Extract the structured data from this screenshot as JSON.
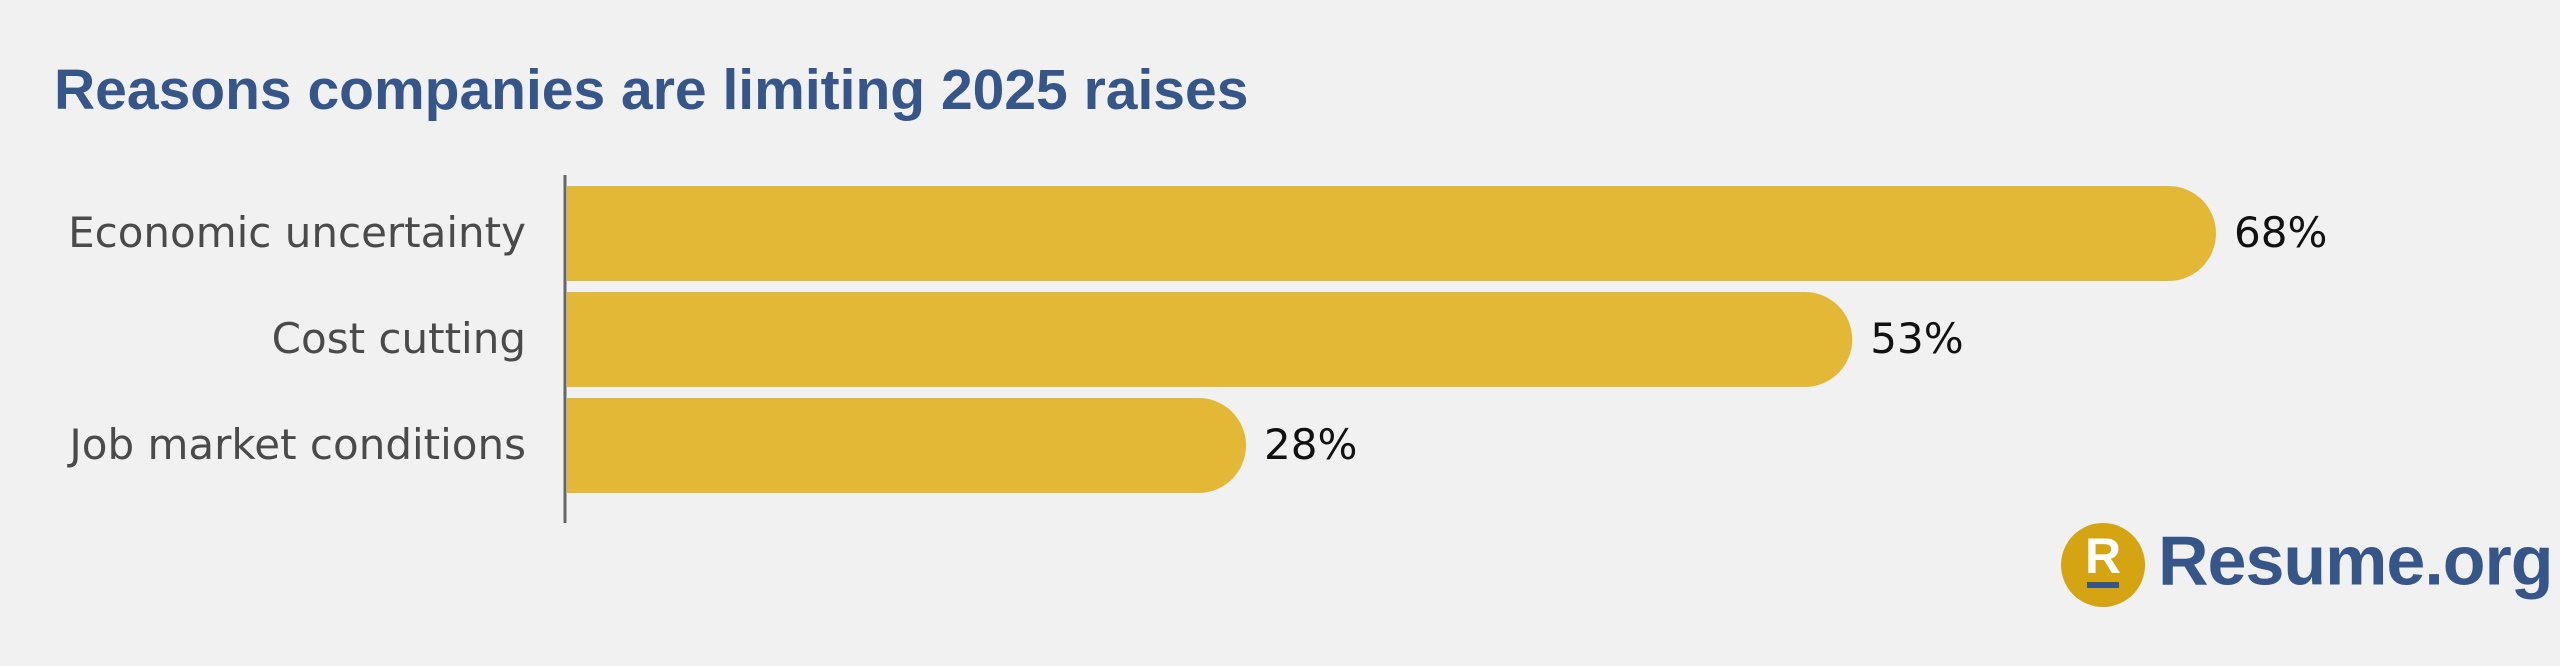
{
  "chart_data": {
    "type": "bar",
    "orientation": "horizontal",
    "title": "Reasons companies are limiting 2025 raises",
    "categories": [
      "Economic uncertainty",
      "Cost cutting",
      "Job market conditions"
    ],
    "values": [
      68,
      53,
      28
    ],
    "value_labels": [
      "68%",
      "53%",
      "28%"
    ],
    "color": "#e3b837"
  },
  "logo": {
    "mark": "R",
    "text": "Resume.org"
  }
}
